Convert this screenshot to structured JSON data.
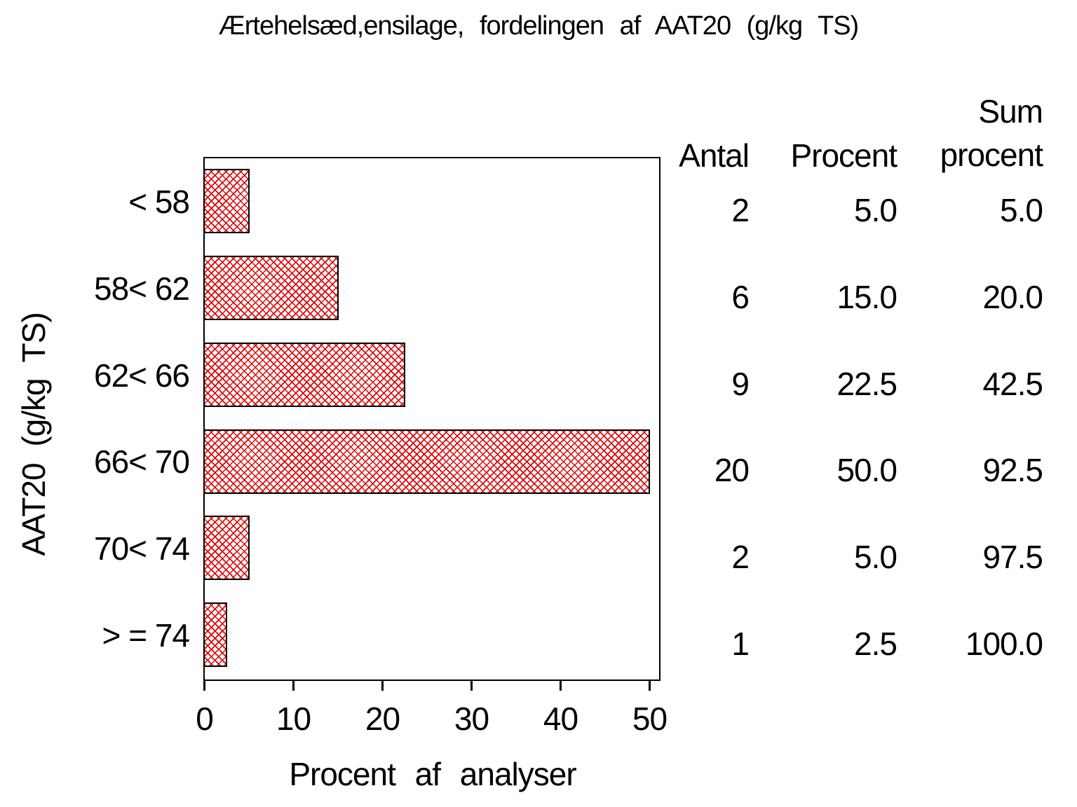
{
  "chart_data": {
    "type": "bar",
    "orientation": "horizontal",
    "title": "Ærtehelsæd,ensilage, fordelingen af AAT20 (g/kg TS)",
    "xlabel": "Procent af analyser",
    "ylabel": "AAT20 (g/kg TS)",
    "categories": [
      "< 58",
      "58< 62",
      "62< 66",
      "66< 70",
      "70< 74",
      "> = 74"
    ],
    "values": [
      5.0,
      15.0,
      22.5,
      50.0,
      5.0,
      2.5
    ],
    "xlim": [
      0,
      50
    ],
    "x_ticks": [
      0,
      10,
      20,
      30,
      40,
      50
    ],
    "grid": false,
    "legend": false,
    "bar_color": "#e00000",
    "bar_border_color": "#000000",
    "bar_pattern": "diagonal-crosshatch",
    "table_headers": {
      "antal": "Antal",
      "procent": "Procent",
      "sum_line1": "Sum",
      "sum_line2": "procent"
    },
    "table_rows": [
      {
        "antal": "2",
        "procent": "5.0",
        "sum_procent": "5.0"
      },
      {
        "antal": "6",
        "procent": "15.0",
        "sum_procent": "20.0"
      },
      {
        "antal": "9",
        "procent": "22.5",
        "sum_procent": "42.5"
      },
      {
        "antal": "20",
        "procent": "50.0",
        "sum_procent": "92.5"
      },
      {
        "antal": "2",
        "procent": "5.0",
        "sum_procent": "97.5"
      },
      {
        "antal": "1",
        "procent": "2.5",
        "sum_procent": "100.0"
      }
    ]
  }
}
